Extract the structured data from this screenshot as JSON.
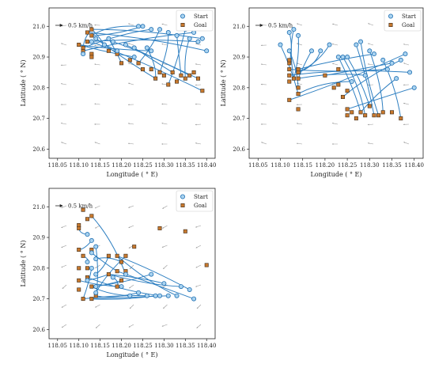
{
  "figure": {
    "legend": {
      "start_label": "Start",
      "goal_label": "Goal",
      "placement": "top-right"
    },
    "scale_label": "0.5 km/h",
    "colors": {
      "trajectory": "#2e7fc1",
      "start_fill": "#a9d3f0",
      "start_edge": "#1f6fb2",
      "goal_fill": "#c8792e",
      "goal_edge": "#3a2a1a",
      "current": "#9a9a9a"
    }
  },
  "chart_data": [
    {
      "type": "line",
      "xlabel": "Longitude ( ° E)",
      "ylabel": "Latitude ( ° N)",
      "xlim": [
        118.03,
        118.42
      ],
      "ylim": [
        20.57,
        21.06
      ],
      "xticks": [
        "118.05",
        "118.10",
        "118.15",
        "118.20",
        "118.25",
        "118.30",
        "118.35",
        "118.40"
      ],
      "yticks": [
        "20.6",
        "20.7",
        "20.8",
        "20.9",
        "21.0"
      ],
      "starts": [
        [
          118.24,
          21.0
        ],
        [
          118.25,
          21.0
        ],
        [
          118.27,
          20.99
        ],
        [
          118.29,
          20.99
        ],
        [
          118.31,
          20.98
        ],
        [
          118.33,
          20.97
        ],
        [
          118.35,
          20.99
        ],
        [
          118.37,
          20.98
        ],
        [
          118.36,
          20.96
        ],
        [
          118.38,
          20.95
        ],
        [
          118.39,
          20.96
        ],
        [
          118.4,
          20.92
        ],
        [
          118.18,
          20.95
        ],
        [
          118.21,
          20.94
        ],
        [
          118.23,
          20.93
        ],
        [
          118.26,
          20.93
        ],
        [
          118.27,
          20.92
        ],
        [
          118.23,
          20.9
        ],
        [
          118.17,
          20.96
        ],
        [
          118.13,
          20.95
        ],
        [
          118.14,
          20.96
        ],
        [
          118.16,
          20.94
        ],
        [
          118.19,
          20.92
        ],
        [
          118.11,
          20.91
        ]
      ],
      "goals": [
        [
          118.1,
          20.94
        ],
        [
          118.11,
          20.92
        ],
        [
          118.12,
          20.95
        ],
        [
          118.13,
          20.99
        ],
        [
          118.13,
          20.97
        ],
        [
          118.12,
          20.98
        ],
        [
          118.11,
          20.93
        ],
        [
          118.13,
          20.91
        ],
        [
          118.13,
          20.9
        ],
        [
          118.17,
          20.92
        ],
        [
          118.19,
          20.91
        ],
        [
          118.22,
          20.89
        ],
        [
          118.24,
          20.88
        ],
        [
          118.25,
          20.86
        ],
        [
          118.27,
          20.86
        ],
        [
          118.29,
          20.85
        ],
        [
          118.3,
          20.84
        ],
        [
          118.31,
          20.81
        ],
        [
          118.33,
          20.82
        ],
        [
          118.34,
          20.84
        ],
        [
          118.35,
          20.83
        ],
        [
          118.36,
          20.84
        ],
        [
          118.37,
          20.85
        ],
        [
          118.38,
          20.83
        ],
        [
          118.39,
          20.79
        ],
        [
          118.28,
          20.83
        ],
        [
          118.32,
          20.85
        ],
        [
          118.2,
          20.88
        ]
      ]
    },
    {
      "type": "line",
      "xlabel": "Longitude ( ° E)",
      "ylabel": "Latitude ( ° N)",
      "xlim": [
        118.03,
        118.42
      ],
      "ylim": [
        20.57,
        21.06
      ],
      "xticks": [
        "118.05",
        "118.10",
        "118.15",
        "118.20",
        "118.25",
        "118.30",
        "118.35",
        "118.40"
      ],
      "yticks": [
        "20.6",
        "20.7",
        "20.8",
        "20.9",
        "21.0"
      ],
      "starts": [
        [
          118.12,
          20.98
        ],
        [
          118.13,
          20.99
        ],
        [
          118.14,
          20.97
        ],
        [
          118.1,
          20.94
        ],
        [
          118.12,
          20.92
        ],
        [
          118.17,
          20.92
        ],
        [
          118.19,
          20.92
        ],
        [
          118.21,
          20.94
        ],
        [
          118.23,
          20.9
        ],
        [
          118.24,
          20.9
        ],
        [
          118.25,
          20.9
        ],
        [
          118.27,
          20.94
        ],
        [
          118.28,
          20.95
        ],
        [
          118.3,
          20.92
        ],
        [
          118.31,
          20.91
        ],
        [
          118.33,
          20.89
        ],
        [
          118.35,
          20.88
        ],
        [
          118.37,
          20.89
        ],
        [
          118.38,
          20.91
        ],
        [
          118.39,
          20.85
        ],
        [
          118.4,
          20.8
        ],
        [
          118.34,
          20.86
        ],
        [
          118.36,
          20.83
        ],
        [
          118.29,
          20.84
        ],
        [
          118.26,
          20.82
        ]
      ],
      "goals": [
        [
          118.12,
          20.76
        ],
        [
          118.12,
          20.82
        ],
        [
          118.12,
          20.84
        ],
        [
          118.12,
          20.86
        ],
        [
          118.12,
          20.88
        ],
        [
          118.12,
          20.89
        ],
        [
          118.13,
          20.83
        ],
        [
          118.14,
          20.78
        ],
        [
          118.14,
          20.73
        ],
        [
          118.14,
          20.8
        ],
        [
          118.14,
          20.83
        ],
        [
          118.14,
          20.85
        ],
        [
          118.14,
          20.86
        ],
        [
          118.23,
          20.86
        ],
        [
          118.23,
          20.81
        ],
        [
          118.24,
          20.77
        ],
        [
          118.25,
          20.73
        ],
        [
          118.25,
          20.71
        ],
        [
          118.25,
          20.79
        ],
        [
          118.26,
          20.72
        ],
        [
          118.27,
          20.7
        ],
        [
          118.28,
          20.72
        ],
        [
          118.29,
          20.71
        ],
        [
          118.3,
          20.74
        ],
        [
          118.31,
          20.71
        ],
        [
          118.32,
          20.71
        ],
        [
          118.33,
          20.72
        ],
        [
          118.35,
          20.72
        ],
        [
          118.37,
          20.7
        ],
        [
          118.2,
          20.84
        ],
        [
          118.22,
          20.8
        ]
      ]
    },
    {
      "type": "line",
      "xlabel": "Longitude ( ° E)",
      "ylabel": "Latitude ( ° N)",
      "xlim": [
        118.03,
        118.42
      ],
      "ylim": [
        20.57,
        21.06
      ],
      "xticks": [
        "118.05",
        "118.10",
        "118.15",
        "118.20",
        "118.25",
        "118.30",
        "118.35",
        "118.40"
      ],
      "yticks": [
        "20.6",
        "20.7",
        "20.8",
        "20.9",
        "21.0"
      ],
      "starts": [
        [
          118.12,
          20.91
        ],
        [
          118.13,
          20.89
        ],
        [
          118.14,
          20.87
        ],
        [
          118.13,
          20.85
        ],
        [
          118.14,
          20.83
        ],
        [
          118.12,
          20.82
        ],
        [
          118.13,
          20.8
        ],
        [
          118.14,
          20.78
        ],
        [
          118.12,
          20.76
        ],
        [
          118.14,
          20.74
        ],
        [
          118.14,
          20.72
        ],
        [
          118.18,
          20.77
        ],
        [
          118.2,
          20.74
        ],
        [
          118.21,
          20.78
        ],
        [
          118.22,
          20.71
        ],
        [
          118.24,
          20.72
        ],
        [
          118.26,
          20.71
        ],
        [
          118.28,
          20.71
        ],
        [
          118.29,
          20.71
        ],
        [
          118.3,
          20.75
        ],
        [
          118.33,
          20.71
        ],
        [
          118.34,
          20.74
        ],
        [
          118.36,
          20.73
        ],
        [
          118.37,
          20.7
        ],
        [
          118.31,
          20.71
        ],
        [
          118.27,
          20.78
        ]
      ],
      "goals": [
        [
          118.1,
          20.94
        ],
        [
          118.1,
          20.93
        ],
        [
          118.1,
          20.86
        ],
        [
          118.1,
          20.8
        ],
        [
          118.1,
          20.76
        ],
        [
          118.1,
          20.73
        ],
        [
          118.11,
          20.99
        ],
        [
          118.12,
          20.96
        ],
        [
          118.11,
          20.84
        ],
        [
          118.12,
          20.8
        ],
        [
          118.12,
          20.77
        ],
        [
          118.13,
          20.97
        ],
        [
          118.13,
          20.86
        ],
        [
          118.13,
          20.74
        ],
        [
          118.14,
          20.71
        ],
        [
          118.11,
          20.7
        ],
        [
          118.13,
          20.7
        ],
        [
          118.17,
          20.84
        ],
        [
          118.17,
          20.78
        ],
        [
          118.19,
          20.84
        ],
        [
          118.19,
          20.79
        ],
        [
          118.2,
          20.82
        ],
        [
          118.2,
          20.76
        ],
        [
          118.21,
          20.84
        ],
        [
          118.23,
          20.87
        ],
        [
          118.29,
          20.93
        ],
        [
          118.35,
          20.92
        ],
        [
          118.4,
          20.81
        ],
        [
          118.21,
          20.79
        ],
        [
          118.19,
          20.74
        ]
      ]
    }
  ]
}
